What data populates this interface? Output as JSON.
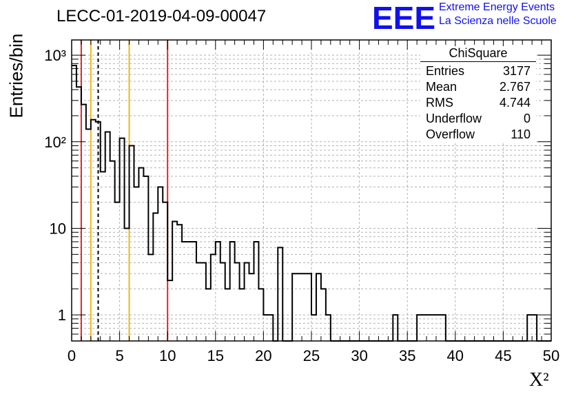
{
  "header": {
    "title": "LECC-01-2019-04-09-00047"
  },
  "logo": {
    "mark": "EEE",
    "line1": "Extreme Energy Events",
    "line2": "La Scienza nelle Scuole"
  },
  "stats": {
    "title": "ChiSquare",
    "rows": [
      {
        "label": "Entries",
        "value": "3177"
      },
      {
        "label": "Mean",
        "value": "2.767"
      },
      {
        "label": "RMS",
        "value": "4.744"
      },
      {
        "label": "Underflow",
        "value": "0"
      },
      {
        "label": "Overflow",
        "value": "110"
      }
    ]
  },
  "chart_data": {
    "type": "histogram",
    "title": "LECC-01-2019-04-09-00047",
    "xlabel": "X²",
    "ylabel": "Entries/bin",
    "xlim": [
      0,
      50
    ],
    "ylim": [
      0.5,
      1500
    ],
    "yscale": "log",
    "grid": true,
    "bin_width": 0.5,
    "x_ticks": [
      "0",
      "5",
      "10",
      "15",
      "20",
      "25",
      "30",
      "35",
      "40",
      "45",
      "50"
    ],
    "y_ticks": [
      "1",
      "10",
      "10²",
      "10³"
    ],
    "bin_counts": [
      760,
      430,
      270,
      140,
      180,
      170,
      45,
      130,
      60,
      20,
      110,
      10,
      90,
      30,
      50,
      40,
      5,
      15,
      30,
      20,
      2.5,
      12,
      11,
      7,
      7,
      7,
      4,
      4,
      2,
      5,
      7,
      4,
      2,
      7,
      4,
      2,
      4,
      3,
      7,
      2,
      1,
      1,
      0,
      6,
      0,
      0,
      3,
      3,
      3,
      3,
      1,
      3,
      2,
      1,
      0.5,
      0,
      0,
      0.5,
      0.5,
      0.5,
      0,
      0.5,
      0,
      0.5,
      0,
      0,
      0,
      1,
      0.5,
      0,
      0,
      0,
      1,
      1,
      1,
      1,
      1,
      1,
      0,
      0,
      0,
      0,
      0,
      0,
      0,
      0,
      0,
      0,
      0,
      0,
      0,
      0,
      0,
      0,
      0,
      1,
      1,
      0,
      0,
      0
    ],
    "vertical_lines": [
      {
        "x": 1,
        "color": "#e8231c",
        "style": "solid"
      },
      {
        "x": 2,
        "color": "#f2b619",
        "style": "solid"
      },
      {
        "x": 2.767,
        "color": "#000000",
        "style": "dashed"
      },
      {
        "x": 6,
        "color": "#f2b619",
        "style": "solid"
      },
      {
        "x": 10,
        "color": "#e8231c",
        "style": "solid"
      }
    ]
  }
}
